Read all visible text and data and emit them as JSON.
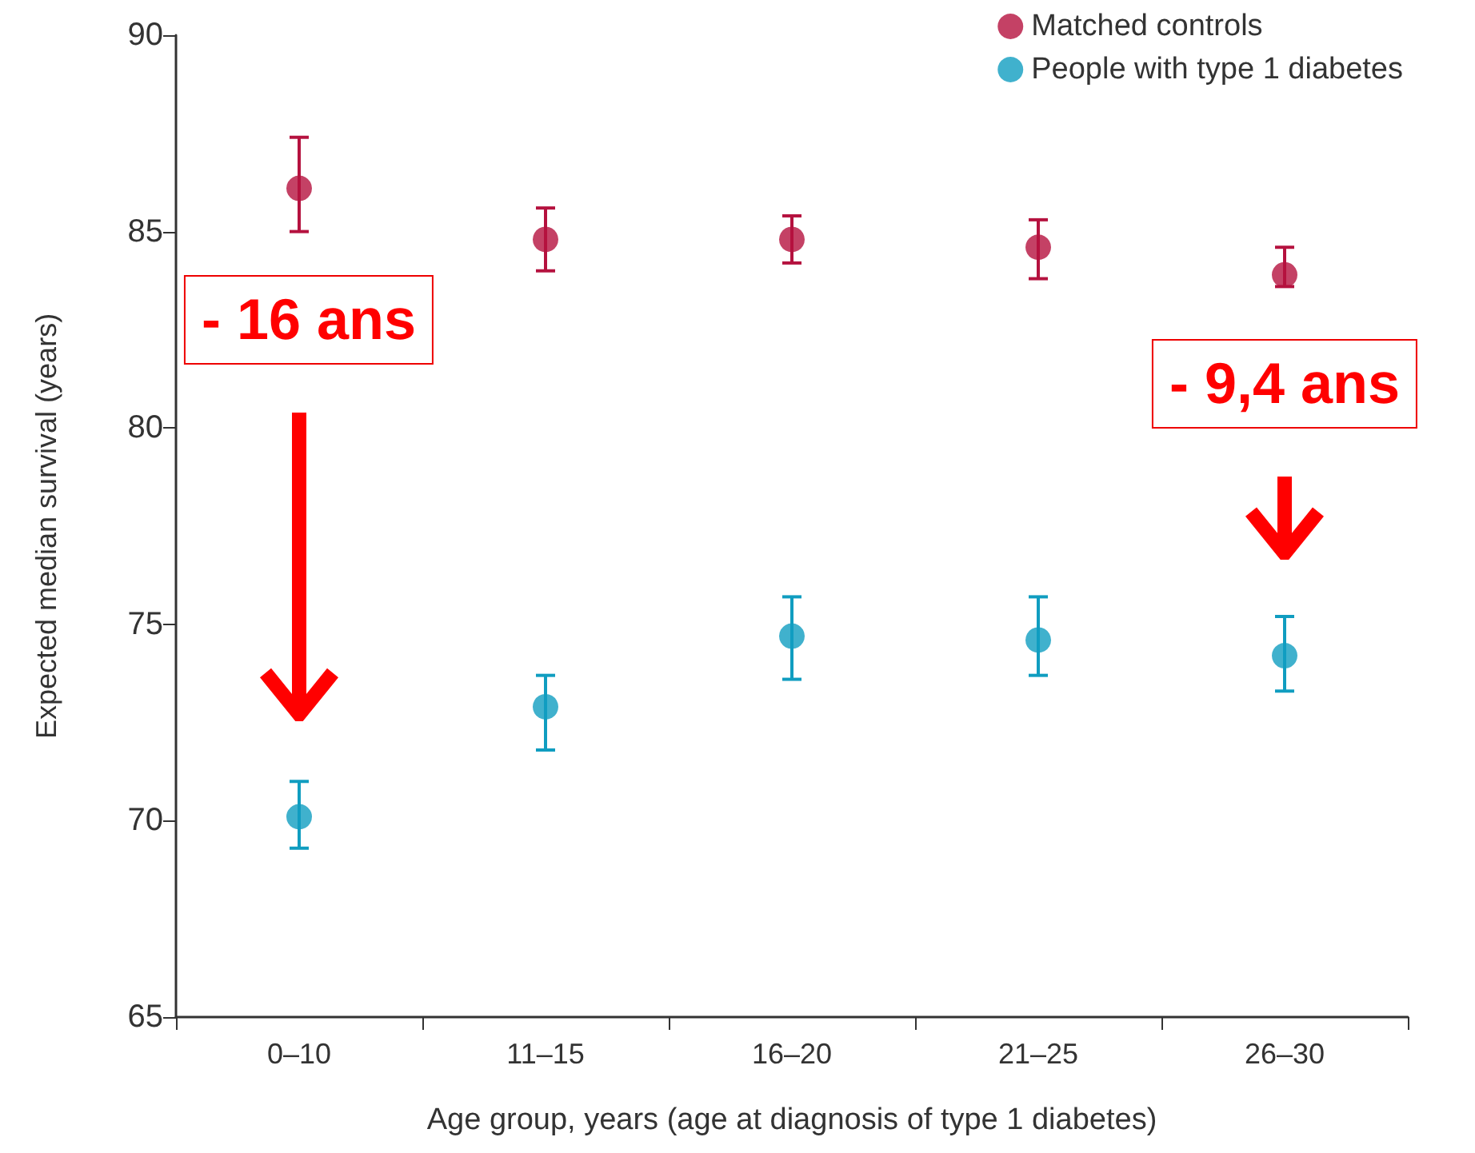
{
  "chart_data": {
    "type": "scatter",
    "xlabel": "Age group, years (age at diagnosis of type 1 diabetes)",
    "ylabel": "Expected median survival (years)",
    "categories": [
      "0–10",
      "11–15",
      "16–20",
      "21–25",
      "26–30"
    ],
    "series": [
      {
        "name": "Matched controls",
        "color": "#b5123f",
        "values": [
          86.1,
          84.8,
          84.8,
          84.6,
          83.9
        ],
        "errors": [
          [
            85.0,
            87.4
          ],
          [
            84.0,
            85.6
          ],
          [
            84.2,
            85.4
          ],
          [
            83.8,
            85.3
          ],
          [
            83.6,
            84.6
          ]
        ]
      },
      {
        "name": "People with type 1 diabetes",
        "color": "#109dc0",
        "values": [
          70.1,
          72.9,
          74.7,
          74.6,
          74.2
        ],
        "errors": [
          [
            69.3,
            71.0
          ],
          [
            71.8,
            73.7
          ],
          [
            73.6,
            75.7
          ],
          [
            73.7,
            75.7
          ],
          [
            73.3,
            75.2
          ]
        ]
      }
    ],
    "ylim": [
      65,
      90
    ],
    "yticks": [
      65,
      70,
      75,
      80,
      85,
      90
    ],
    "grid": false,
    "legend": "top right",
    "marker": "circle",
    "annotations": [
      "- 16 ans",
      "- 9,4 ans"
    ]
  }
}
